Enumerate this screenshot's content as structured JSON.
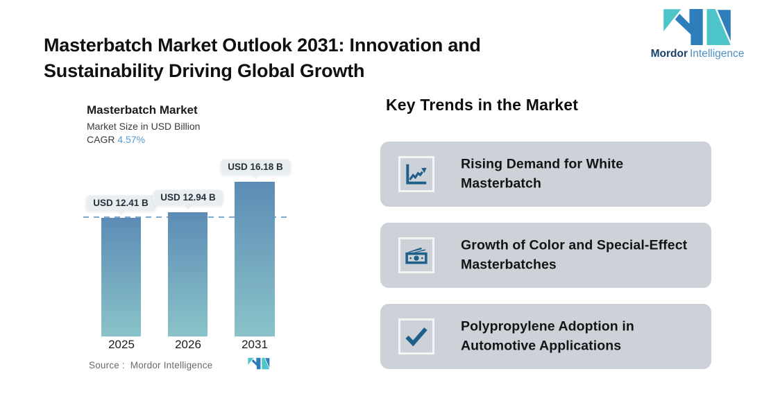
{
  "header": {
    "title_line1": "Masterbatch Market Outlook 2031: Innovation and",
    "title_line2": "Sustainability Driving Global Growth"
  },
  "brand": {
    "name_bold": "Mordor",
    "name_light": "Intelligence",
    "colors": {
      "teal": "#4EC5C9",
      "blue": "#2E7EBB",
      "navy": "#17406B",
      "light_blue": "#4D8FC4"
    }
  },
  "chart": {
    "title": "Masterbatch Market",
    "subtitle": "Market Size in USD Billion",
    "cagr_label": "CAGR",
    "cagr_value": "4.57%",
    "source_label": "Source :  Mordor Intelligence",
    "colors": {
      "bar_top": "#5C8CB5",
      "bar_bottom": "#8AC3C9",
      "dashed_line": "#7FA9CB",
      "label_bg": "#E9EEF1",
      "cagr_accent": "#5799D2"
    }
  },
  "chart_data": {
    "type": "bar",
    "title": "Masterbatch Market",
    "ylabel": "Market Size in USD Billion",
    "categories": [
      "2025",
      "2026",
      "2031"
    ],
    "values": [
      12.41,
      12.94,
      16.18
    ],
    "labels": [
      "USD 12.41 B",
      "USD 12.94 B",
      "USD 16.18 B"
    ],
    "cagr": "4.57%",
    "reference_line_value": 12.41,
    "ylim": [
      0,
      18
    ],
    "grid": false,
    "legend": false
  },
  "trends": {
    "heading": "Key Trends in the Market",
    "card_bg": "#CDD2D9",
    "icon_color": "#1F608A",
    "cards": [
      {
        "icon": "line-chart-icon",
        "text": "Rising Demand for White Masterbatch"
      },
      {
        "icon": "banknotes-icon",
        "text": "Growth of Color and Special-Effect Masterbatches"
      },
      {
        "icon": "checkmark-icon",
        "text": "Polypropylene Adoption in Automotive Applications"
      }
    ]
  }
}
